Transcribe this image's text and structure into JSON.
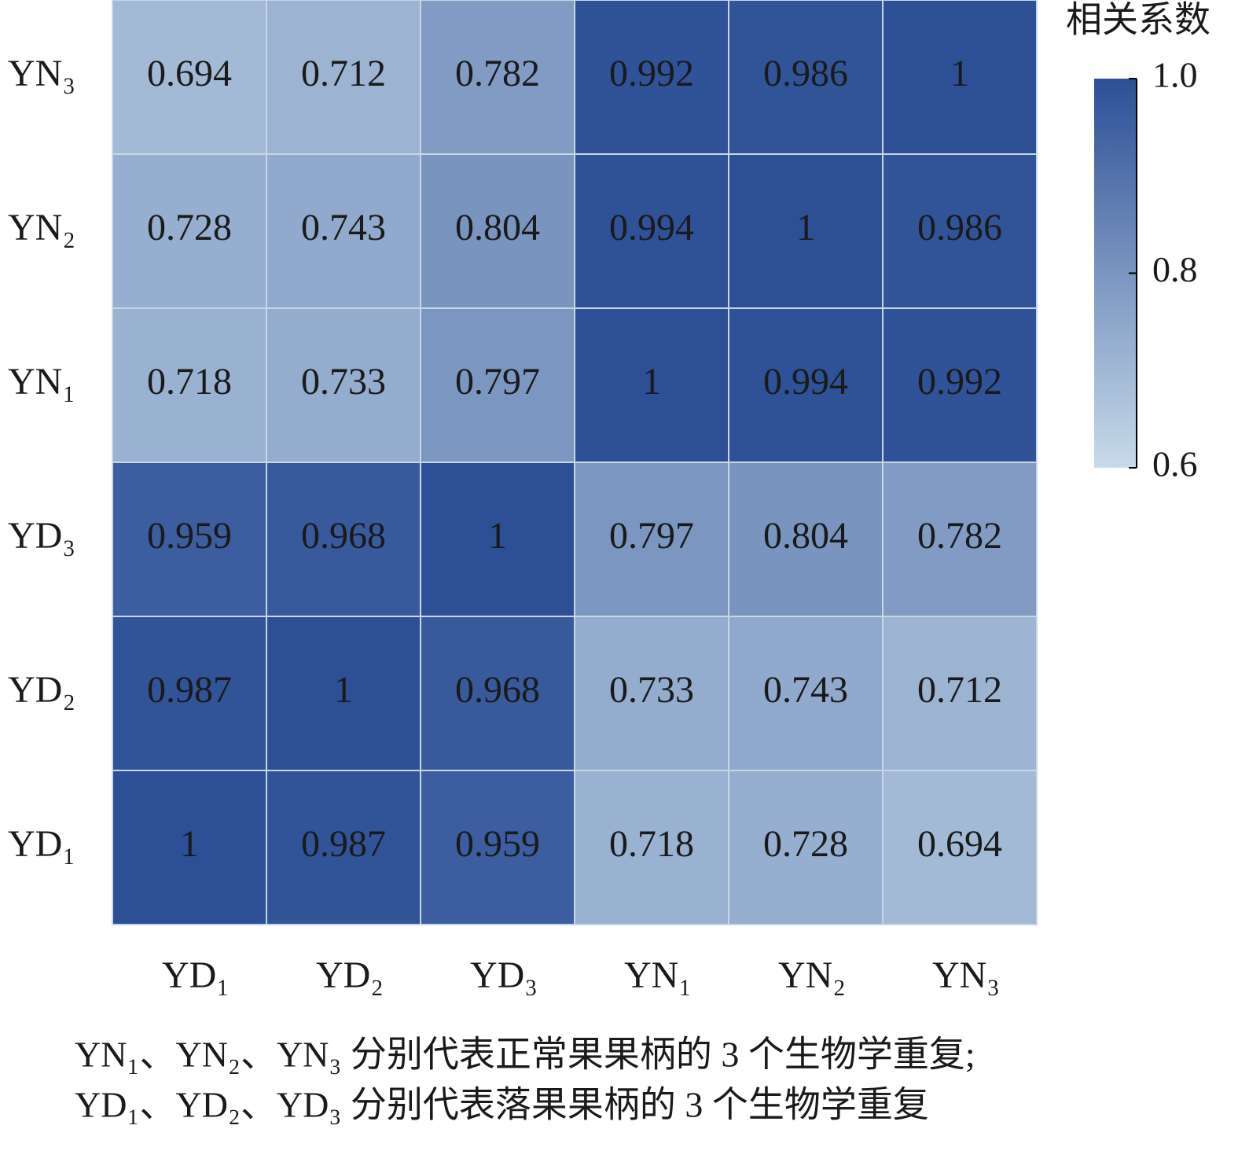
{
  "chart_data": {
    "type": "heatmap",
    "x_categories": [
      "YD₁",
      "YD₂",
      "YD₃",
      "YN₁",
      "YN₂",
      "YN₃"
    ],
    "y_categories": [
      "YN₃",
      "YN₂",
      "YN₁",
      "YD₃",
      "YD₂",
      "YD₁"
    ],
    "values": [
      [
        0.694,
        0.712,
        0.782,
        0.992,
        0.986,
        1
      ],
      [
        0.728,
        0.743,
        0.804,
        0.994,
        1,
        0.986
      ],
      [
        0.718,
        0.733,
        0.797,
        1,
        0.994,
        0.992
      ],
      [
        0.959,
        0.968,
        1,
        0.797,
        0.804,
        0.782
      ],
      [
        0.987,
        1,
        0.968,
        0.733,
        0.743,
        0.712
      ],
      [
        1,
        0.987,
        0.959,
        0.718,
        0.728,
        0.694
      ]
    ],
    "colorbar_title": "相关系数",
    "clim": [
      0.6,
      1
    ],
    "cticks": [
      0.6,
      0.8,
      {
        "value": 1,
        "label": "1.0"
      }
    ],
    "colors": [
      "#c8dbea",
      "#2c4f96"
    ],
    "caption": [
      "YN₁、YN₂、YN₃ 分别代表正常果果柄的 3 个生物学重复;",
      "YD₁、YD₂、YD₃ 分别代表落果果柄的 3 个生物学重复"
    ]
  }
}
